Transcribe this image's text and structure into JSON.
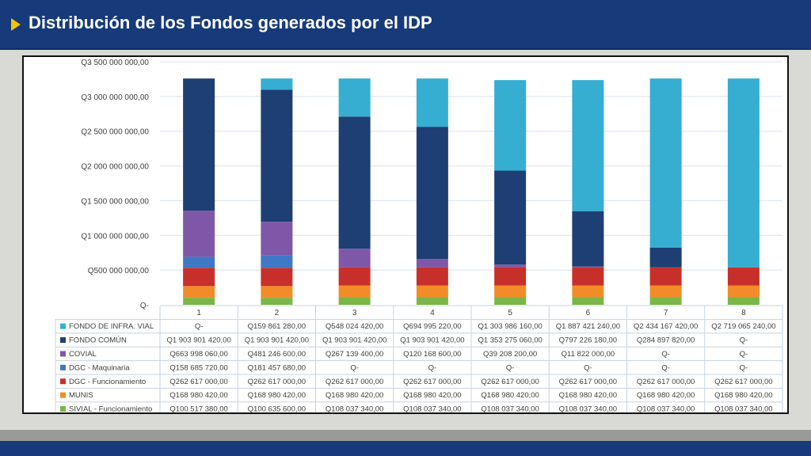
{
  "header": {
    "title": "Distribución de los Fondos generados por el IDP"
  },
  "colors": {
    "header_bg": "#163a7a",
    "accent": "#f5c400"
  },
  "chart_data": {
    "type": "bar",
    "stacked": true,
    "categories": [
      "1",
      "2",
      "3",
      "4",
      "5",
      "6",
      "7",
      "8"
    ],
    "ylim": [
      0,
      3500000000
    ],
    "yticks": [
      0,
      500000000,
      1000000000,
      1500000000,
      2000000000,
      2500000000,
      3000000000,
      3500000000
    ],
    "ytick_labels": [
      "Q-",
      "Q500 000 000,00",
      "Q1 000 000 000,00",
      "Q1 500 000 000,00",
      "Q2 000 000 000,00",
      "Q2 500 000 000,00",
      "Q3 000 000 000,00",
      "Q3 500 000 000,00"
    ],
    "grid": true,
    "series": [
      {
        "name": "SIVIAL - Funcionamiento",
        "color": "#7ab648",
        "values": [
          100517380,
          100635600,
          108037340,
          108037340,
          108037340,
          108037340,
          108037340,
          108037340
        ],
        "labels": [
          "Q100 517 380,00",
          "Q100 635 600,00",
          "Q108 037 340,00",
          "Q108 037 340,00",
          "Q108 037 340,00",
          "Q108 037 340,00",
          "Q108 037 340,00",
          "Q108 037 340,00"
        ]
      },
      {
        "name": "MUNIS",
        "color": "#f28c28",
        "values": [
          168980420,
          168980420,
          168980420,
          168980420,
          168980420,
          168980420,
          168980420,
          168980420
        ],
        "labels": [
          "Q168 980 420,00",
          "Q168 980 420,00",
          "Q168 980 420,00",
          "Q168 980 420,00",
          "Q168 980 420,00",
          "Q168 980 420,00",
          "Q168 980 420,00",
          "Q168 980 420,00"
        ]
      },
      {
        "name": "DGC - Funcionamiento",
        "color": "#c7302a",
        "values": [
          262617000,
          262617000,
          262617000,
          262617000,
          262617000,
          262617000,
          262617000,
          262617000
        ],
        "labels": [
          "Q262 617 000,00",
          "Q262 617 000,00",
          "Q262 617 000,00",
          "Q262 617 000,00",
          "Q262 617 000,00",
          "Q262 617 000,00",
          "Q262 617 000,00",
          "Q262 617 000,00"
        ]
      },
      {
        "name": "DGC - Maquinaria",
        "color": "#3f78c5",
        "values": [
          158685720,
          181457680,
          0,
          0,
          0,
          0,
          0,
          0
        ],
        "labels": [
          "Q158 685 720,00",
          "Q181 457 680,00",
          "Q-",
          "Q-",
          "Q-",
          "Q-",
          "Q-",
          "Q-"
        ]
      },
      {
        "name": "COVIAL",
        "color": "#7f57a8",
        "values": [
          663998060,
          481246600,
          267139400,
          120168600,
          39208200,
          11822000,
          0,
          0
        ],
        "labels": [
          "Q663 998 060,00",
          "Q481 246 600,00",
          "Q267 139 400,00",
          "Q120 168 600,00",
          "Q39 208 200,00",
          "Q11 822 000,00",
          "Q-",
          "Q-"
        ]
      },
      {
        "name": "FONDO COMÚN",
        "color": "#1d3f73",
        "values": [
          1903901420,
          1903901420,
          1903901420,
          1903901420,
          1353275060,
          797226180,
          284897820,
          0
        ],
        "labels": [
          "Q1 903 901 420,00",
          "Q1 903 901 420,00",
          "Q1 903 901 420,00",
          "Q1 903 901 420,00",
          "Q1 353 275 060,00",
          "Q797 226 180,00",
          "Q284 897 820,00",
          "Q-"
        ]
      },
      {
        "name": "FONDO DE INFRA. VIAL",
        "color": "#35aed2",
        "values": [
          0,
          159861280,
          548024420,
          694995220,
          1303986160,
          1887421240,
          2434167420,
          2719065240
        ],
        "labels": [
          "Q-",
          "Q159 861 280,00",
          "Q548 024 420,00",
          "Q694 995 220,00",
          "Q1 303 986 160,00",
          "Q1 887 421 240,00",
          "Q2 434 167 420,00",
          "Q2 719 065 240,00"
        ]
      }
    ],
    "table_row_order": [
      "FONDO DE INFRA. VIAL",
      "FONDO COMÚN",
      "COVIAL",
      "DGC - Maquinaria",
      "DGC - Funcionamiento",
      "MUNIS",
      "SIVIAL - Funcionamiento"
    ]
  }
}
